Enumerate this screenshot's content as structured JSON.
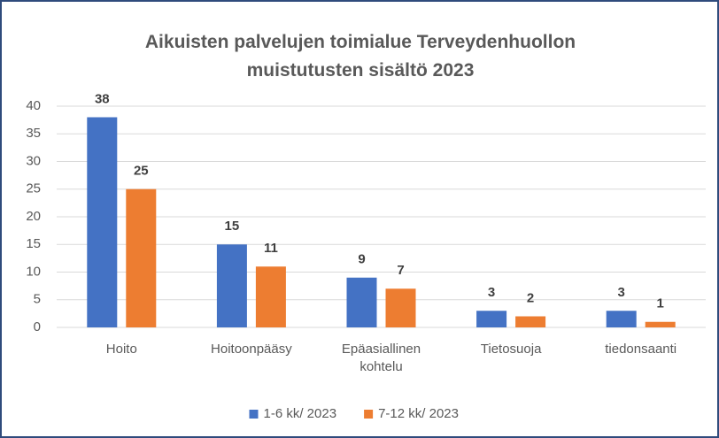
{
  "chart_data": {
    "type": "bar",
    "title": "Aikuisten palvelujen toimialue Terveydenhuollon muistutusten sisältö 2023",
    "categories": [
      "Hoito",
      "Hoitoonpääsy",
      "Epäasiallinen kohtelu",
      "Tietosuoja",
      "tiedonsaanti"
    ],
    "series": [
      {
        "name": "1-6 kk/ 2023",
        "color": "#4472c4",
        "values": [
          38,
          15,
          9,
          3,
          3
        ]
      },
      {
        "name": "7-12 kk/ 2023",
        "color": "#ed7d31",
        "values": [
          25,
          11,
          7,
          2,
          1
        ]
      }
    ],
    "ylim": [
      0,
      40
    ],
    "yticks": [
      0,
      5,
      10,
      15,
      20,
      25,
      30,
      35,
      40
    ],
    "grid": true,
    "legend": "bottom"
  }
}
